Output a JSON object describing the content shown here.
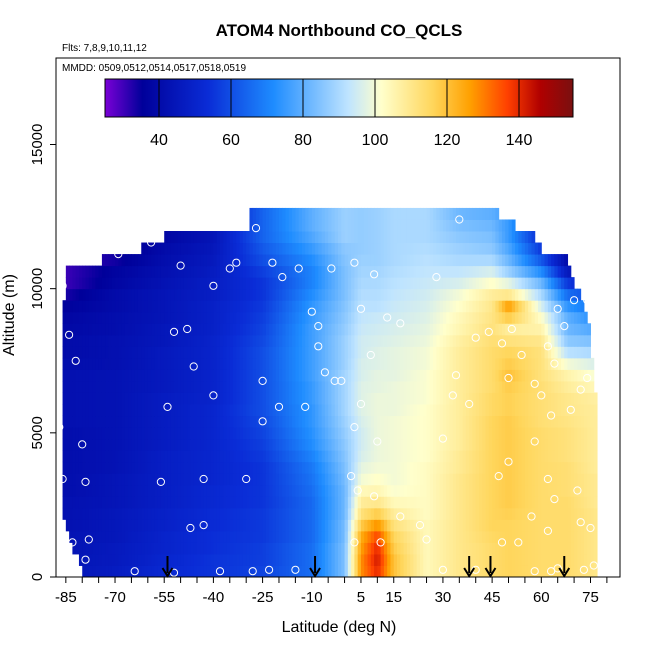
{
  "chart_data": {
    "type": "heatmap",
    "title": "ATOM4 Northbound CO_QCLS",
    "subtitle_flights": "Flts: 7,8,9,10,11,12",
    "subtitle_dates": "MMDD: 0509,0512,0514,0517,0518,0519",
    "xlabel": "Latitude (deg N)",
    "ylabel": "Altitude (m)",
    "xlim": [
      -88,
      84
    ],
    "ylim": [
      0,
      18000
    ],
    "xticks": [
      -85,
      -70,
      -55,
      -40,
      -25,
      -10,
      5,
      15,
      30,
      45,
      60,
      75
    ],
    "xtick_labels": [
      "-85",
      "-70",
      "-55",
      "-40",
      "-25",
      "-10",
      "5",
      "15",
      "30",
      "45",
      "60",
      "75"
    ],
    "yticks": [
      0,
      5000,
      10000,
      15000
    ],
    "ytick_labels": [
      "0",
      "5000",
      "10000",
      "15000"
    ],
    "colorbar": {
      "range": [
        25,
        155
      ],
      "ticks": [
        40,
        60,
        80,
        100,
        120,
        140
      ],
      "tick_labels": [
        "40",
        "60",
        "80",
        "100",
        "120",
        "140"
      ],
      "colors": [
        "#7a00d6",
        "#00009a",
        "#0a2cd6",
        "#1e8cff",
        "#bfe4ff",
        "#ffffcc",
        "#ffd65c",
        "#ffa000",
        "#ff4000",
        "#b00000",
        "#7a1010"
      ]
    },
    "airports_lat": [
      -54,
      -9,
      38,
      44.5,
      67
    ],
    "altitude_levels_m": [
      0,
      400,
      800,
      1200,
      1600,
      2000,
      2400,
      2800,
      3200,
      3600,
      4000,
      4400,
      4800,
      5200,
      5600,
      6000,
      6400,
      6800,
      7200,
      7600,
      8000,
      8400,
      8800,
      9200,
      9600,
      10000,
      10400,
      10800,
      11200,
      11600,
      12000,
      12400
    ],
    "north_edge_by_altitude_lat": [
      77,
      77,
      77,
      77,
      77,
      77,
      77,
      77,
      77,
      77,
      77,
      77,
      77,
      77,
      77,
      77,
      76,
      76,
      76,
      75,
      75,
      75,
      74,
      73,
      72,
      70,
      69,
      68,
      60,
      58,
      52,
      47
    ],
    "south_edge_by_altitude_lat": [
      -80,
      -81,
      -83,
      -84,
      -85,
      -86,
      -86,
      -86,
      -86,
      -86,
      -86,
      -86,
      -86,
      -86,
      -86,
      -86,
      -86,
      -86,
      -86,
      -86,
      -86,
      -86,
      -86,
      -86,
      -85,
      -85,
      -85,
      -74,
      -62,
      -55,
      -29,
      -29
    ],
    "co_ppb_profiles": [
      {
        "lat": -86,
        "values": [
          44,
          44,
          43,
          43,
          42,
          42,
          42,
          41,
          41,
          41,
          41,
          41,
          41,
          42,
          42,
          42,
          42,
          42,
          41,
          40,
          40,
          39,
          38,
          36,
          33,
          30
        ]
      },
      {
        "lat": -70,
        "values": [
          47,
          46,
          46,
          45,
          45,
          45,
          44,
          44,
          44,
          43,
          43,
          43,
          43,
          43,
          43,
          43,
          43,
          43,
          42,
          42,
          42,
          41,
          41,
          40,
          40,
          38,
          37,
          34,
          32,
          30,
          30,
          30
        ]
      },
      {
        "lat": -55,
        "values": [
          52,
          51,
          50,
          50,
          49,
          49,
          48,
          48,
          48,
          48,
          48,
          47,
          47,
          47,
          47,
          47,
          46,
          46,
          46,
          46,
          45,
          45,
          44,
          44,
          44,
          43,
          42,
          41,
          40,
          38,
          38,
          38
        ]
      },
      {
        "lat": -40,
        "values": [
          55,
          55,
          54,
          54,
          53,
          53,
          52,
          52,
          51,
          51,
          51,
          51,
          51,
          51,
          51,
          50,
          50,
          50,
          50,
          50,
          50,
          49,
          49,
          49,
          48,
          48,
          47,
          46,
          45,
          44,
          44,
          44
        ]
      },
      {
        "lat": -25,
        "values": [
          58,
          57,
          57,
          56,
          56,
          56,
          55,
          55,
          55,
          55,
          56,
          57,
          58,
          59,
          60,
          60,
          60,
          60,
          60,
          60,
          59,
          58,
          57,
          56,
          55,
          55,
          57,
          60,
          62,
          64,
          64,
          64
        ]
      },
      {
        "lat": -10,
        "values": [
          66,
          66,
          66,
          65,
          65,
          65,
          65,
          66,
          67,
          68,
          70,
          72,
          73,
          74,
          74,
          75,
          75,
          76,
          76,
          76,
          76,
          76,
          75,
          74,
          72,
          70,
          70,
          72,
          75,
          78,
          80,
          80
        ]
      },
      {
        "lat": 0,
        "values": [
          84,
          84,
          84,
          83,
          83,
          82,
          82,
          82,
          83,
          84,
          85,
          86,
          87,
          88,
          89,
          89,
          89,
          89,
          88,
          88,
          88,
          87,
          86,
          85,
          84,
          84,
          84,
          85,
          86,
          88,
          88,
          88
        ]
      },
      {
        "lat": 5,
        "values": [
          128,
          128,
          126,
          124,
          118,
          112,
          108,
          104,
          100,
          98,
          96,
          95,
          95,
          96,
          97,
          97,
          97,
          96,
          96,
          95,
          95,
          94,
          93,
          92,
          91,
          90,
          89,
          88,
          87,
          87,
          87,
          87
        ]
      },
      {
        "lat": 10,
        "values": [
          140,
          142,
          140,
          136,
          128,
          118,
          110,
          105,
          102,
          100,
          99,
          99,
          99,
          99,
          99,
          99,
          98,
          98,
          97,
          97,
          96,
          95,
          94,
          92,
          91,
          90,
          89,
          88,
          88,
          88,
          88,
          88
        ]
      },
      {
        "lat": 15,
        "values": [
          120,
          120,
          118,
          116,
          112,
          108,
          104,
          101,
          100,
          100,
          100,
          100,
          100,
          100,
          99,
          99,
          99,
          98,
          98,
          98,
          97,
          96,
          95,
          94,
          93,
          92,
          91,
          90,
          90,
          90,
          90,
          90
        ]
      },
      {
        "lat": 25,
        "values": [
          104,
          104,
          104,
          104,
          104,
          103,
          103,
          103,
          103,
          103,
          102,
          102,
          102,
          102,
          102,
          101,
          101,
          101,
          100,
          100,
          99,
          98,
          97,
          96,
          95,
          94,
          93,
          92,
          91,
          90,
          90,
          90
        ]
      },
      {
        "lat": 35,
        "values": [
          110,
          110,
          110,
          110,
          110,
          110,
          110,
          110,
          110,
          109,
          109,
          108,
          108,
          108,
          108,
          108,
          108,
          108,
          108,
          108,
          107,
          105,
          104,
          102,
          100,
          96,
          93,
          90,
          88,
          86,
          84,
          82
        ]
      },
      {
        "lat": 45,
        "values": [
          114,
          114,
          114,
          115,
          116,
          116,
          116,
          116,
          116,
          116,
          116,
          116,
          116,
          116,
          115,
          115,
          114,
          114,
          114,
          114,
          113,
          112,
          111,
          110,
          108,
          102,
          96,
          90,
          86,
          84,
          82,
          80
        ]
      },
      {
        "lat": 50,
        "values": [
          116,
          116,
          116,
          116,
          116,
          117,
          118,
          118,
          118,
          118,
          118,
          118,
          118,
          118,
          117,
          117,
          118,
          120,
          118,
          116,
          112,
          108,
          118,
          126,
          110,
          98,
          88,
          82,
          78,
          75,
          75,
          75
        ]
      },
      {
        "lat": 60,
        "values": [
          114,
          114,
          114,
          114,
          114,
          114,
          114,
          114,
          114,
          114,
          114,
          114,
          114,
          113,
          113,
          113,
          113,
          112,
          112,
          112,
          110,
          106,
          102,
          96,
          90,
          82,
          72,
          62,
          56,
          52,
          52,
          52
        ]
      },
      {
        "lat": 68,
        "values": [
          114,
          114,
          114,
          114,
          114,
          114,
          114,
          113,
          113,
          113,
          112,
          112,
          112,
          111,
          110,
          110,
          108,
          106,
          100,
          92,
          86,
          82,
          80,
          74,
          66,
          56,
          46,
          40,
          36,
          34,
          34,
          34
        ]
      },
      {
        "lat": 77,
        "values": [
          110,
          110,
          110,
          110,
          110,
          110,
          109,
          109,
          109,
          108,
          108,
          108,
          108,
          108,
          108,
          107,
          104,
          100,
          96,
          90,
          84,
          78,
          72,
          66,
          58,
          46,
          38,
          34,
          32,
          32,
          32,
          32
        ]
      }
    ],
    "sample_points": [
      {
        "lat": -86,
        "alt": 10100
      },
      {
        "lat": -84,
        "alt": 8400
      },
      {
        "lat": -82,
        "alt": 7500
      },
      {
        "lat": -87,
        "alt": 5200
      },
      {
        "lat": -80,
        "alt": 4600
      },
      {
        "lat": -86,
        "alt": 3400
      },
      {
        "lat": -79,
        "alt": 3300
      },
      {
        "lat": -83,
        "alt": 1200
      },
      {
        "lat": -78,
        "alt": 1300
      },
      {
        "lat": -79,
        "alt": 600
      },
      {
        "lat": -69,
        "alt": 11200
      },
      {
        "lat": -59,
        "alt": 11600
      },
      {
        "lat": -50,
        "alt": 10800
      },
      {
        "lat": -40,
        "alt": 10100
      },
      {
        "lat": -52,
        "alt": 8500
      },
      {
        "lat": -48,
        "alt": 8600
      },
      {
        "lat": -46,
        "alt": 7300
      },
      {
        "lat": -54,
        "alt": 5900
      },
      {
        "lat": -40,
        "alt": 6300
      },
      {
        "lat": -56,
        "alt": 3300
      },
      {
        "lat": -43,
        "alt": 3400
      },
      {
        "lat": -30,
        "alt": 3400
      },
      {
        "lat": -47,
        "alt": 1700
      },
      {
        "lat": -43,
        "alt": 1800
      },
      {
        "lat": -64,
        "alt": 200
      },
      {
        "lat": -52,
        "alt": 150
      },
      {
        "lat": -38,
        "alt": 200
      },
      {
        "lat": -28,
        "alt": 200
      },
      {
        "lat": -23,
        "alt": 250
      },
      {
        "lat": -15,
        "alt": 250
      },
      {
        "lat": -27,
        "alt": 12100
      },
      {
        "lat": -33,
        "alt": 10900
      },
      {
        "lat": -35,
        "alt": 10700
      },
      {
        "lat": -22,
        "alt": 10900
      },
      {
        "lat": -14,
        "alt": 10700
      },
      {
        "lat": -4,
        "alt": 10700
      },
      {
        "lat": -19,
        "alt": 10400
      },
      {
        "lat": -10,
        "alt": 9200
      },
      {
        "lat": -8,
        "alt": 8700
      },
      {
        "lat": -8,
        "alt": 8000
      },
      {
        "lat": -25,
        "alt": 6800
      },
      {
        "lat": -20,
        "alt": 5900
      },
      {
        "lat": -12,
        "alt": 5900
      },
      {
        "lat": -25,
        "alt": 5400
      },
      {
        "lat": -6,
        "alt": 7100
      },
      {
        "lat": -3,
        "alt": 6800
      },
      {
        "lat": -1,
        "alt": 6800
      },
      {
        "lat": 3,
        "alt": 10900
      },
      {
        "lat": 9,
        "alt": 10500
      },
      {
        "lat": 5,
        "alt": 9300
      },
      {
        "lat": 13,
        "alt": 9000
      },
      {
        "lat": 17,
        "alt": 8800
      },
      {
        "lat": 8,
        "alt": 7700
      },
      {
        "lat": 5,
        "alt": 6000
      },
      {
        "lat": 3,
        "alt": 5200
      },
      {
        "lat": 10,
        "alt": 4700
      },
      {
        "lat": 2,
        "alt": 3500
      },
      {
        "lat": 9,
        "alt": 2800
      },
      {
        "lat": 4,
        "alt": 3000
      },
      {
        "lat": 11,
        "alt": 1200
      },
      {
        "lat": 17,
        "alt": 2100
      },
      {
        "lat": 23,
        "alt": 1800
      },
      {
        "lat": 25,
        "alt": 1300
      },
      {
        "lat": 3,
        "alt": 1200
      },
      {
        "lat": 28,
        "alt": 10400
      },
      {
        "lat": 35,
        "alt": 12400
      },
      {
        "lat": 34,
        "alt": 7000
      },
      {
        "lat": 30,
        "alt": 4800
      },
      {
        "lat": 33,
        "alt": 6300
      },
      {
        "lat": 38,
        "alt": 6000
      },
      {
        "lat": 40,
        "alt": 8300
      },
      {
        "lat": 44,
        "alt": 8500
      },
      {
        "lat": 48,
        "alt": 8100
      },
      {
        "lat": 51,
        "alt": 8600
      },
      {
        "lat": 54,
        "alt": 7700
      },
      {
        "lat": 50,
        "alt": 6900
      },
      {
        "lat": 58,
        "alt": 6700
      },
      {
        "lat": 62,
        "alt": 8000
      },
      {
        "lat": 64,
        "alt": 7400
      },
      {
        "lat": 60,
        "alt": 6300
      },
      {
        "lat": 63,
        "alt": 5600
      },
      {
        "lat": 58,
        "alt": 4700
      },
      {
        "lat": 69,
        "alt": 5800
      },
      {
        "lat": 72,
        "alt": 6500
      },
      {
        "lat": 74,
        "alt": 6900
      },
      {
        "lat": 67,
        "alt": 8700
      },
      {
        "lat": 65,
        "alt": 9300
      },
      {
        "lat": 70,
        "alt": 9600
      },
      {
        "lat": 74,
        "alt": 9600
      },
      {
        "lat": 76,
        "alt": 9200
      },
      {
        "lat": 72,
        "alt": 10800
      },
      {
        "lat": 75,
        "alt": 10800
      },
      {
        "lat": 47,
        "alt": 3500
      },
      {
        "lat": 50,
        "alt": 4000
      },
      {
        "lat": 62,
        "alt": 3400
      },
      {
        "lat": 64,
        "alt": 2700
      },
      {
        "lat": 57,
        "alt": 2100
      },
      {
        "lat": 62,
        "alt": 1600
      },
      {
        "lat": 72,
        "alt": 1900
      },
      {
        "lat": 75,
        "alt": 1700
      },
      {
        "lat": 71,
        "alt": 3000
      },
      {
        "lat": 58,
        "alt": 200
      },
      {
        "lat": 63,
        "alt": 200
      },
      {
        "lat": 65,
        "alt": 300
      },
      {
        "lat": 73,
        "alt": 250
      },
      {
        "lat": 76,
        "alt": 400
      },
      {
        "lat": 53,
        "alt": 1200
      },
      {
        "lat": 48,
        "alt": 1200
      },
      {
        "lat": 30,
        "alt": 250
      },
      {
        "lat": 40,
        "alt": 250
      }
    ]
  }
}
